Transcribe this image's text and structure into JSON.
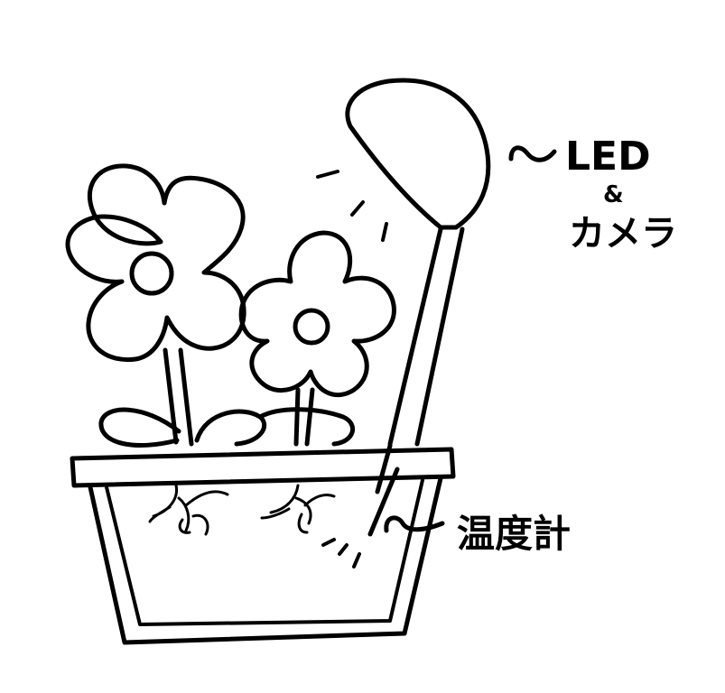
{
  "labels": {
    "led": "LED",
    "amp": "&",
    "camera": "カメラ",
    "thermometer": "温度計"
  },
  "colors": {
    "ink": "#000000",
    "paper": "#ffffff"
  }
}
